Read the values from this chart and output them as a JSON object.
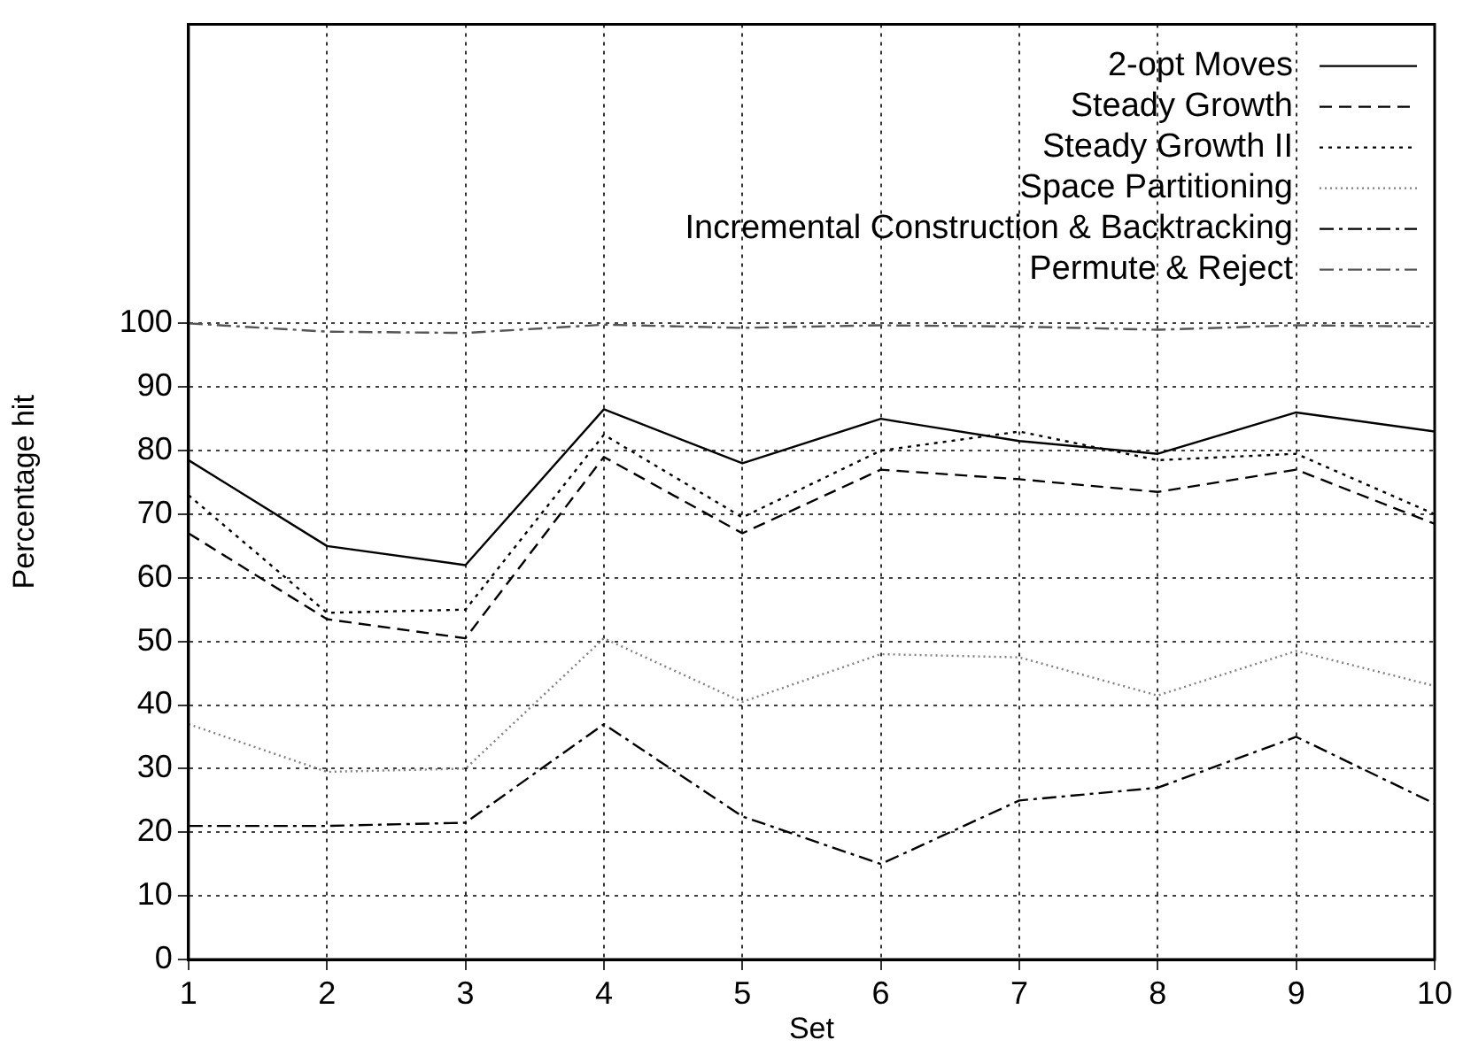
{
  "chart_data": {
    "type": "line",
    "xlabel": "Set",
    "ylabel": "Percentage hit",
    "x": [
      1,
      2,
      3,
      4,
      5,
      6,
      7,
      8,
      9,
      10
    ],
    "xlim": [
      1,
      10
    ],
    "xticks": [
      1,
      2,
      3,
      4,
      5,
      6,
      7,
      8,
      9,
      10
    ],
    "ylim": [
      0,
      147
    ],
    "yticks": [
      0,
      10,
      20,
      30,
      40,
      50,
      60,
      70,
      80,
      90,
      100
    ],
    "grid": true,
    "legend": "top right",
    "marker": "none",
    "series": [
      {
        "name": "2-opt Moves",
        "color": "#000000",
        "line_style": "solid",
        "values": [
          78.5,
          65,
          62,
          86.5,
          78,
          85,
          81.5,
          79.5,
          86,
          83
        ]
      },
      {
        "name": "Steady Growth",
        "color": "#000000",
        "line_style": "dashed",
        "values": [
          67,
          53.5,
          50.5,
          79,
          67,
          77,
          75.5,
          73.5,
          77,
          68.5
        ]
      },
      {
        "name": "Steady Growth II",
        "color": "#000000",
        "line_style": "dotted",
        "values": [
          73,
          54.5,
          55,
          82.5,
          69.5,
          80,
          83,
          78.5,
          79.5,
          70
        ]
      },
      {
        "name": "Space Partitioning",
        "color": "#808080",
        "line_style": "dotted",
        "values": [
          37,
          29.5,
          30,
          50.5,
          40.5,
          48,
          47.5,
          41.5,
          48.5,
          43
        ]
      },
      {
        "name": "Incremental Construction & Backtracking",
        "color": "#000000",
        "line_style": "dashed",
        "values": [
          21,
          21,
          21.5,
          37,
          22.5,
          15,
          25,
          27,
          35,
          24.5
        ]
      },
      {
        "name": "Permute & Reject",
        "color": "#555555",
        "line_style": "dashed",
        "values": [
          100,
          98.7,
          98.5,
          99.8,
          99.3,
          99.7,
          99.5,
          99,
          99.7,
          99.5
        ]
      }
    ]
  }
}
